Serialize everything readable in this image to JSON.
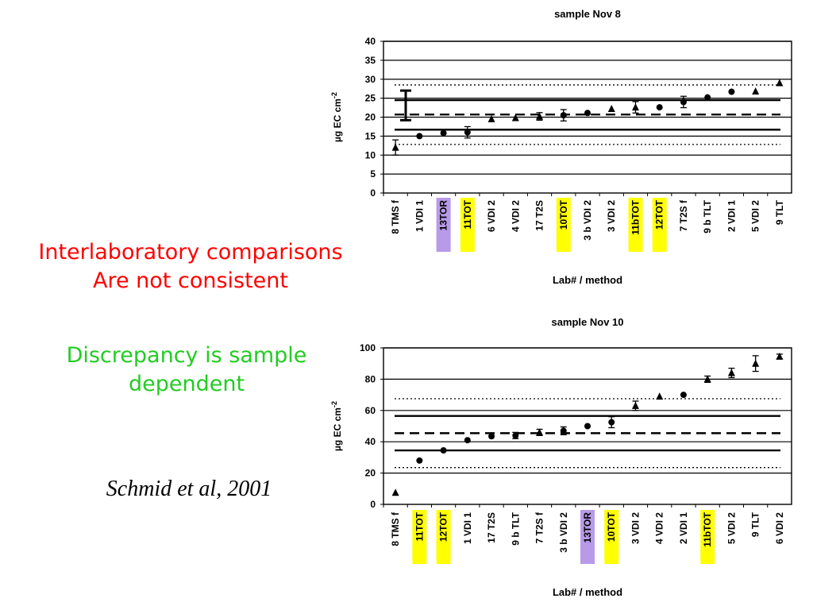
{
  "slide": {
    "heading_line1": "Interlaboratory comparisons",
    "heading_line2": "Are not consistent",
    "note_line1": "Discrepancy is sample",
    "note_line2": "dependent",
    "citation": "Schmid et al, 2001"
  },
  "colors": {
    "heading": "#ff0000",
    "note": "#22cc22",
    "highlight_yellow": "#ffff00",
    "highlight_purple": "#b89ae8"
  },
  "chart_data": [
    {
      "type": "scatter",
      "title": "sample Nov 8",
      "xlabel": "Lab# / method",
      "ylabel": "µg EC cm",
      "ylabel_superscript": "-2",
      "ylim": [
        0,
        40
      ],
      "yticks": [
        0,
        5,
        10,
        15,
        20,
        25,
        30,
        35,
        40
      ],
      "grid": "horizontal",
      "categories": [
        "8 TMS f",
        "1 VDI 1",
        "13TOR",
        "11TOT",
        "6 VDI 2",
        "4 VDI 2",
        "17 T2S",
        "10TOT",
        "3 b VDI 2",
        "3 VDI 2",
        "11bTOT",
        "12TOT",
        "7 T2S f",
        "9 b TLT",
        "2 VDI 1",
        "5 VDI 2",
        "9 TLT"
      ],
      "highlights": [
        "none",
        "none",
        "purple",
        "yellow",
        "none",
        "none",
        "none",
        "yellow",
        "none",
        "none",
        "yellow",
        "yellow",
        "none",
        "none",
        "none",
        "none",
        "none"
      ],
      "values": [
        12,
        15,
        15.8,
        16,
        19.5,
        19.8,
        20.2,
        20.5,
        21.1,
        22.2,
        22.6,
        22.6,
        24,
        25.2,
        26.7,
        26.8,
        29
      ],
      "errors": [
        2,
        0,
        0,
        1.5,
        0,
        0,
        1,
        1.5,
        0,
        0,
        1.5,
        0,
        1.5,
        0,
        0,
        0,
        0
      ],
      "markers": [
        "triangle",
        "circle",
        "circle",
        "circle",
        "triangle",
        "triangle",
        "triangle",
        "circle",
        "circle",
        "triangle",
        "triangle",
        "circle",
        "circle",
        "circle",
        "circle",
        "triangle",
        "triangle"
      ],
      "reference_lines": [
        {
          "style": "dotted",
          "value": 28.5
        },
        {
          "style": "solid-thick",
          "value": 24.5
        },
        {
          "style": "dashed",
          "value": 20.7
        },
        {
          "style": "solid-thick",
          "value": 16.7
        },
        {
          "style": "dotted",
          "value": 12.8
        }
      ],
      "range_bar": {
        "low": 19.2,
        "high": 27
      }
    },
    {
      "type": "scatter",
      "title": "sample Nov 10",
      "xlabel": "Lab# / method",
      "ylabel": "µg EC cm",
      "ylabel_superscript": "-2",
      "ylim": [
        0,
        100
      ],
      "yticks": [
        0,
        20,
        40,
        60,
        80,
        100
      ],
      "grid": "horizontal",
      "categories": [
        "8 TMS f",
        "11TOT",
        "12TOT",
        "1 VDI 1",
        "17 T2S",
        "9 b TLT",
        "7 T2S f",
        "3 b VDI 2",
        "13TOR",
        "10TOT",
        "3 VDI 2",
        "4 VDI 2",
        "2 VDI 1",
        "11bTOT",
        "5 VDI 2",
        "9 TLT",
        "6 VDI 2"
      ],
      "highlights": [
        "none",
        "yellow",
        "yellow",
        "none",
        "none",
        "none",
        "none",
        "none",
        "purple",
        "yellow",
        "none",
        "none",
        "none",
        "yellow",
        "none",
        "none",
        "none"
      ],
      "values": [
        7.5,
        28,
        34.5,
        41,
        43.5,
        44,
        46,
        47,
        50,
        52.5,
        63,
        69,
        70,
        80,
        84,
        90,
        94.5
      ],
      "errors": [
        0,
        0,
        0,
        0,
        0,
        2,
        2,
        2.5,
        0,
        3.5,
        3,
        0,
        0,
        2,
        3,
        5,
        1.5
      ],
      "markers": [
        "triangle",
        "circle",
        "circle",
        "circle",
        "circle",
        "circle",
        "triangle",
        "circle",
        "circle",
        "circle",
        "triangle",
        "triangle",
        "circle",
        "triangle",
        "triangle",
        "triangle",
        "triangle"
      ],
      "reference_lines": [
        {
          "style": "dotted",
          "value": 67.5
        },
        {
          "style": "solid-thick",
          "value": 56.5
        },
        {
          "style": "dashed",
          "value": 45.5
        },
        {
          "style": "solid-thick",
          "value": 34.5
        },
        {
          "style": "dotted",
          "value": 23.5
        }
      ]
    }
  ]
}
